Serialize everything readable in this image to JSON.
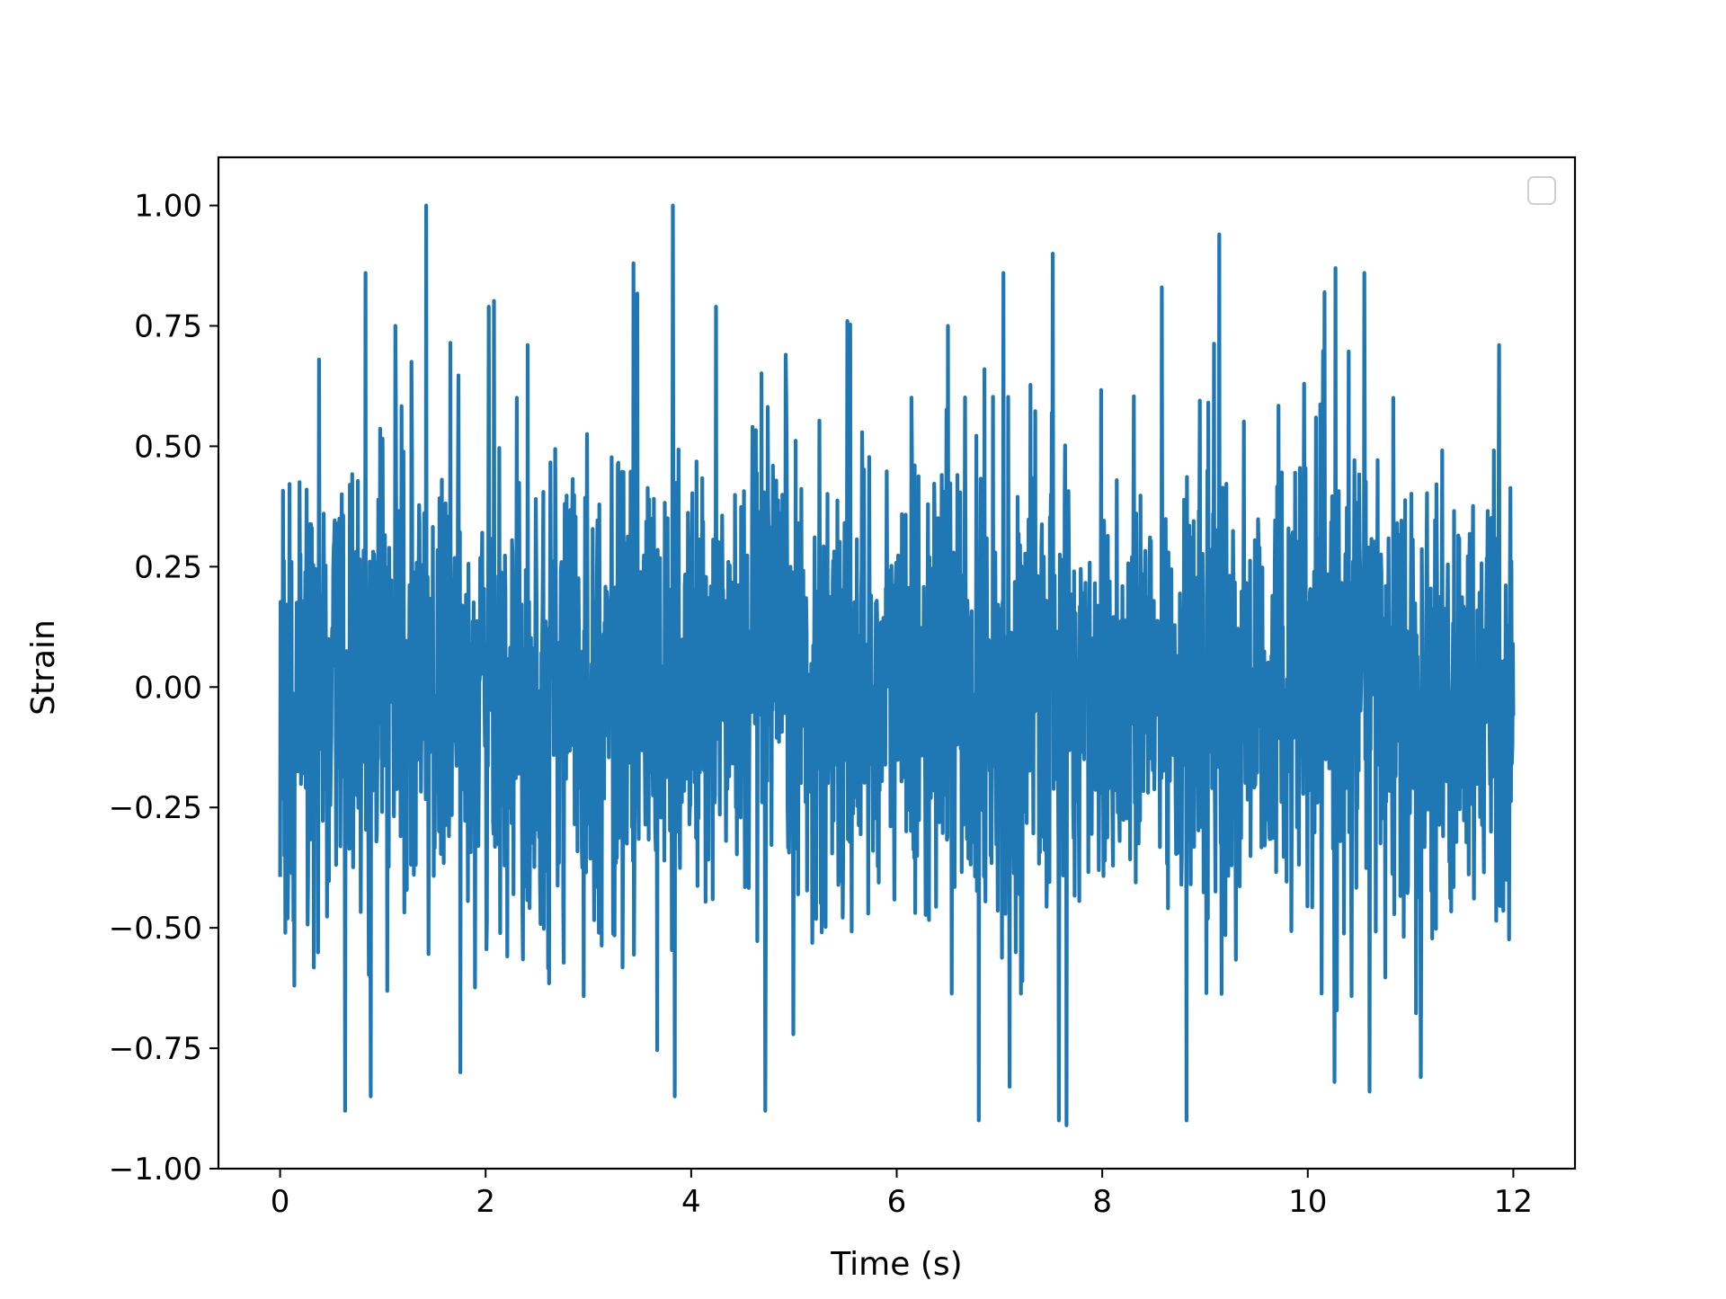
{
  "chart_data": {
    "type": "line",
    "title": "",
    "xlabel": "Time (s)",
    "ylabel": "Strain",
    "xlim": [
      -0.6,
      12.6
    ],
    "ylim": [
      -1.0,
      1.1
    ],
    "xticks": [
      0,
      2,
      4,
      6,
      8,
      10,
      12
    ],
    "xtick_labels": [
      "0",
      "2",
      "4",
      "6",
      "8",
      "10",
      "12"
    ],
    "yticks": [
      -1.0,
      -0.75,
      -0.5,
      -0.25,
      0.0,
      0.25,
      0.5,
      0.75,
      1.0
    ],
    "ytick_labels": [
      "−1.00",
      "−0.75",
      "−0.50",
      "−0.25",
      "0.00",
      "0.25",
      "0.50",
      "0.75",
      "1.00"
    ],
    "grid": false,
    "legend": {
      "placement": "top-right",
      "entries": []
    },
    "series": [
      {
        "color": "#1f77b4",
        "x_range": [
          0,
          12
        ],
        "y_peak_max": 1.0,
        "y_peak_min": -0.91,
        "x_peak_max": 1.42,
        "x_peak_min": 7.65,
        "peaks": [
          [
            0.38,
            0.68
          ],
          [
            0.63,
            0.69
          ],
          [
            0.83,
            0.86
          ],
          [
            1.12,
            0.75
          ],
          [
            1.42,
            1.0
          ],
          [
            2.03,
            0.79
          ],
          [
            2.41,
            0.71
          ],
          [
            3.44,
            0.88
          ],
          [
            3.82,
            1.0
          ],
          [
            4.24,
            0.79
          ],
          [
            4.92,
            0.69
          ],
          [
            5.52,
            0.76
          ],
          [
            6.5,
            0.75
          ],
          [
            7.04,
            0.86
          ],
          [
            7.52,
            0.9
          ],
          [
            7.65,
            0.92
          ],
          [
            8.58,
            0.83
          ],
          [
            9.14,
            0.94
          ],
          [
            10.27,
            0.87
          ],
          [
            10.55,
            0.86
          ],
          [
            11.86,
            0.71
          ],
          [
            0.14,
            -0.62
          ],
          [
            0.63,
            -0.88
          ],
          [
            0.88,
            -0.85
          ],
          [
            3.84,
            -0.85
          ],
          [
            4.72,
            -0.88
          ],
          [
            6.8,
            -0.9
          ],
          [
            7.1,
            -0.83
          ],
          [
            7.58,
            -0.9
          ],
          [
            7.65,
            -0.91
          ],
          [
            8.82,
            -0.9
          ],
          [
            10.26,
            -0.82
          ],
          [
            10.6,
            -0.84
          ],
          [
            11.1,
            -0.81
          ]
        ]
      }
    ]
  }
}
